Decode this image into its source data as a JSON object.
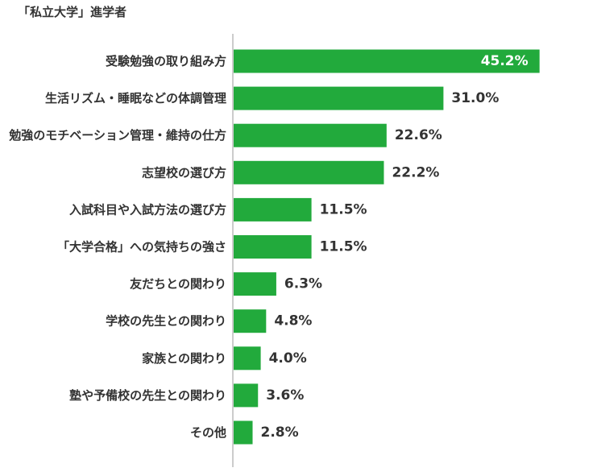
{
  "chart_data": {
    "type": "bar",
    "orientation": "horizontal",
    "title": "「私立大学」進学者",
    "xlabel": "",
    "ylabel": "",
    "unit": "%",
    "categories": [
      "受験勉強の取り組み方",
      "生活リズム・睡眠などの体調管理",
      "勉強のモチベーション管理・維持の仕方",
      "志望校の選び方",
      "入試科目や入試方法の選び方",
      "「大学合格」への気持ちの強さ",
      "友だちとの関わり",
      "学校の先生との関わり",
      "家族との関わり",
      "塾や予備校の先生との関わり",
      "その他"
    ],
    "values": [
      45.2,
      31.0,
      22.6,
      22.2,
      11.5,
      11.5,
      6.3,
      4.8,
      4.0,
      3.6,
      2.8
    ],
    "value_labels": [
      "45.2%",
      "31.0%",
      "22.6%",
      "22.2%",
      "11.5%",
      "11.5%",
      "6.3%",
      "4.8%",
      "4.0%",
      "3.6%",
      "2.8%"
    ],
    "xlim": [
      0,
      50
    ],
    "grid": false,
    "legend": "none",
    "colors": {
      "bar": "#22aa3c",
      "axis": "#999999",
      "label_inside": "#ffffff",
      "label_outside": "#333333"
    }
  }
}
